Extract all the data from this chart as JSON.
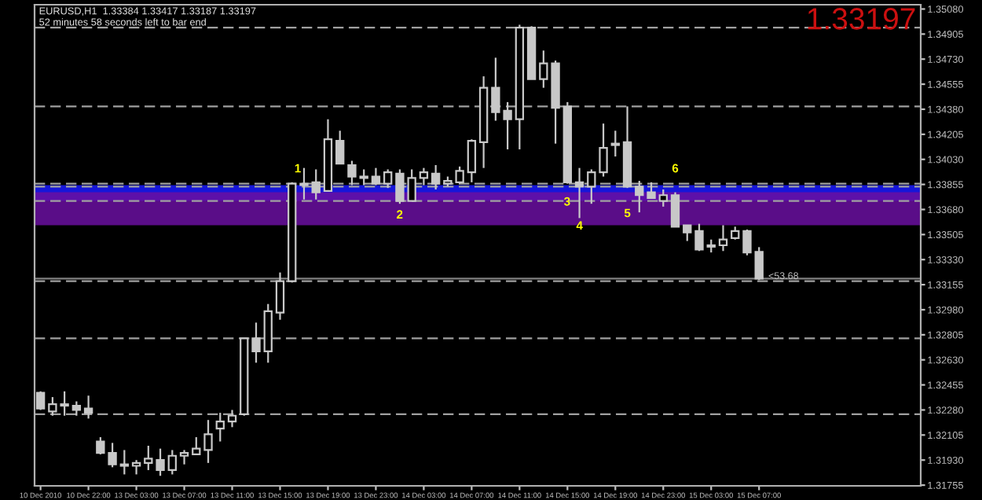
{
  "chart_data": {
    "type": "candlestick",
    "title": "EURUSD,H1  1.33384 1.33417 1.33187 1.33197",
    "subtitle": "52 minutes 58 seconds left to bar end",
    "categories": [
      "10 Dec 2010",
      null,
      null,
      null,
      "10 Dec 22:00",
      null,
      null,
      null,
      "13 Dec 03:00",
      null,
      null,
      null,
      "13 Dec 07:00",
      null,
      null,
      null,
      "13 Dec 11:00",
      null,
      null,
      null,
      "13 Dec 15:00",
      null,
      null,
      null,
      "13 Dec 19:00",
      null,
      null,
      null,
      "13 Dec 23:00",
      null,
      null,
      null,
      "14 Dec 03:00",
      null,
      null,
      null,
      "14 Dec 07:00",
      null,
      null,
      null,
      "14 Dec 11:00",
      null,
      null,
      null,
      "14 Dec 15:00",
      null,
      null,
      null,
      "14 Dec 19:00",
      null,
      null,
      null,
      "14 Dec 23:00",
      null,
      null,
      null,
      "15 Dec 03:00",
      null,
      null,
      null,
      "15 Dec 07:00",
      null,
      null,
      null,
      null,
      null,
      null,
      null,
      null,
      null,
      null,
      null,
      null,
      null
    ],
    "ohlc": [
      [
        1.324,
        1.3241,
        1.3228,
        1.3229
      ],
      [
        1.3227,
        1.3237,
        1.3224,
        1.3232
      ],
      [
        1.3232,
        1.3241,
        1.3224,
        1.3231
      ],
      [
        1.3231,
        1.3234,
        1.3224,
        1.3228
      ],
      [
        1.3229,
        1.3238,
        1.3222,
        1.3226
      ],
      [
        1.3206,
        1.3209,
        1.3197,
        1.3198
      ],
      [
        1.3198,
        1.3205,
        1.3188,
        1.319
      ],
      [
        1.319,
        1.32,
        1.3183,
        1.3189
      ],
      [
        1.3189,
        1.3193,
        1.3183,
        1.3191
      ],
      [
        1.3191,
        1.3203,
        1.3186,
        1.3194
      ],
      [
        1.3193,
        1.3201,
        1.3182,
        1.3186
      ],
      [
        1.3186,
        1.32,
        1.3183,
        1.3196
      ],
      [
        1.3196,
        1.32,
        1.319,
        1.3198
      ],
      [
        1.3197,
        1.3209,
        1.3197,
        1.3201
      ],
      [
        1.32,
        1.3221,
        1.3191,
        1.3211
      ],
      [
        1.3215,
        1.3226,
        1.3206,
        1.322
      ],
      [
        1.322,
        1.3228,
        1.3216,
        1.3224
      ],
      [
        1.3225,
        1.3278,
        1.3224,
        1.3278
      ],
      [
        1.3278,
        1.3289,
        1.3261,
        1.3269
      ],
      [
        1.3269,
        1.3302,
        1.3261,
        1.3297
      ],
      [
        1.3296,
        1.3324,
        1.3291,
        1.3318
      ],
      [
        1.3318,
        1.3387,
        1.3317,
        1.3386
      ],
      [
        1.3386,
        1.3397,
        1.3375,
        1.3385
      ],
      [
        1.3387,
        1.3396,
        1.3375,
        1.338
      ],
      [
        1.3381,
        1.3431,
        1.3381,
        1.3417
      ],
      [
        1.3416,
        1.3423,
        1.34,
        1.34
      ],
      [
        1.3399,
        1.3402,
        1.3385,
        1.3391
      ],
      [
        1.3391,
        1.3396,
        1.3385,
        1.339
      ],
      [
        1.3391,
        1.3397,
        1.3385,
        1.3386
      ],
      [
        1.3386,
        1.3396,
        1.3383,
        1.3394
      ],
      [
        1.3393,
        1.3396,
        1.3372,
        1.3374
      ],
      [
        1.3374,
        1.3396,
        1.3374,
        1.339
      ],
      [
        1.339,
        1.3397,
        1.3385,
        1.3394
      ],
      [
        1.3393,
        1.3399,
        1.3382,
        1.3386
      ],
      [
        1.3386,
        1.3391,
        1.3384,
        1.3388
      ],
      [
        1.3387,
        1.3398,
        1.3386,
        1.3395
      ],
      [
        1.3394,
        1.3417,
        1.3387,
        1.3416
      ],
      [
        1.3415,
        1.3461,
        1.3397,
        1.3453
      ],
      [
        1.3453,
        1.3474,
        1.343,
        1.3436
      ],
      [
        1.3437,
        1.3443,
        1.341,
        1.3431
      ],
      [
        1.3431,
        1.3497,
        1.341,
        1.3495
      ],
      [
        1.3495,
        1.3496,
        1.3459,
        1.3459
      ],
      [
        1.3459,
        1.3479,
        1.3453,
        1.347
      ],
      [
        1.347,
        1.3472,
        1.3414,
        1.3439
      ],
      [
        1.344,
        1.3443,
        1.3386,
        1.3387
      ],
      [
        1.3387,
        1.3397,
        1.3362,
        1.3384
      ],
      [
        1.3384,
        1.3396,
        1.3372,
        1.3394
      ],
      [
        1.3394,
        1.3428,
        1.3391,
        1.3411
      ],
      [
        1.3414,
        1.3423,
        1.3405,
        1.3413
      ],
      [
        1.3415,
        1.344,
        1.3383,
        1.3384
      ],
      [
        1.3384,
        1.3388,
        1.3366,
        1.3378
      ],
      [
        1.338,
        1.3387,
        1.3376,
        1.3376
      ],
      [
        1.3374,
        1.3382,
        1.337,
        1.3378
      ],
      [
        1.3378,
        1.338,
        1.3356,
        1.3356
      ],
      [
        1.3357,
        1.3357,
        1.3346,
        1.3352
      ],
      [
        1.3353,
        1.3358,
        1.3339,
        1.334
      ],
      [
        1.3343,
        1.3347,
        1.3338,
        1.3342
      ],
      [
        1.3343,
        1.3357,
        1.3339,
        1.3347
      ],
      [
        1.3348,
        1.3356,
        1.3347,
        1.3353
      ],
      [
        1.3353,
        1.3354,
        1.3336,
        1.3338
      ],
      [
        1.33384,
        1.33417,
        1.33187,
        1.33197
      ],
      null,
      null,
      null,
      null,
      null,
      null,
      null,
      null,
      null,
      null,
      null,
      null,
      null
    ],
    "ylim": [
      1.3175,
      1.3511
    ],
    "yticks": [
      1.31755,
      {
        "value": 1.3193,
        "label": "1.31930"
      },
      1.32105,
      {
        "value": 1.3228,
        "label": "1.32280"
      },
      1.32455,
      {
        "value": 1.3263,
        "label": "1.32630"
      },
      1.32805,
      {
        "value": 1.3298,
        "label": "1.32980"
      },
      1.33155,
      {
        "value": 1.3333,
        "label": "1.33330"
      },
      1.33505,
      {
        "value": 1.3368,
        "label": "1.33680"
      },
      1.33855,
      {
        "value": 1.3403,
        "label": "1.34030"
      },
      1.34205,
      {
        "value": 1.3438,
        "label": "1.34380"
      },
      1.34555,
      {
        "value": 1.3473,
        "label": "1.34730"
      },
      1.34905,
      {
        "value": 1.3508,
        "label": "1.35080"
      }
    ],
    "ref_lines": [
      {
        "axis": "y",
        "value": 1.3495,
        "line_style": "dashed",
        "color": "#a0a0a0"
      },
      {
        "axis": "y",
        "value": 1.344,
        "line_style": "dashed",
        "color": "#a0a0a0"
      },
      {
        "axis": "y",
        "value": 1.3386,
        "line_style": "dashed",
        "color": "#a0a0a0"
      },
      {
        "axis": "y",
        "value": 1.3384,
        "line_style": "dashed",
        "color": "#a0a0a0"
      },
      {
        "axis": "y",
        "value": 1.3374,
        "line_style": "dashed",
        "color": "#a0a0a0"
      },
      {
        "axis": "y",
        "value": 1.33197,
        "line_style": "solid",
        "color": "#808080"
      },
      {
        "axis": "y",
        "value": 1.3318,
        "line_style": "dashed",
        "color": "#a0a0a0"
      },
      {
        "axis": "y",
        "value": 1.3278,
        "line_style": "dashed",
        "color": "#a0a0a0"
      },
      {
        "axis": "y",
        "value": 1.3225,
        "line_style": "dashed",
        "color": "#a0a0a0"
      }
    ],
    "bands": [
      {
        "axis": "y",
        "from": 1.3374,
        "to": 1.3385,
        "color": "#1a1aff"
      },
      {
        "axis": "y",
        "from": 1.3357,
        "to": 1.338,
        "color": "#6a0fa0"
      }
    ],
    "annotations": [
      "1",
      "2",
      "3",
      "4",
      "5",
      "6",
      "<53.68",
      "1.33197"
    ],
    "grid": false
  }
}
